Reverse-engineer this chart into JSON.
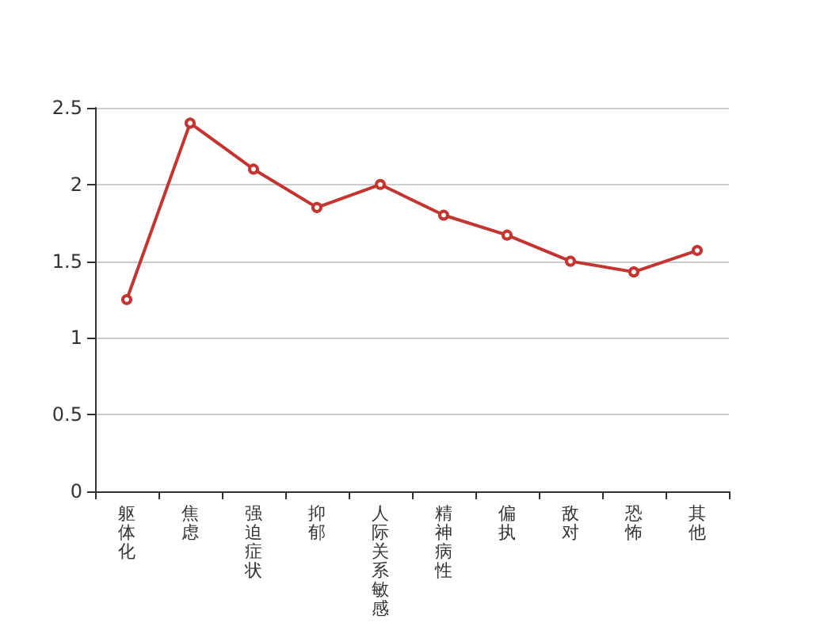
{
  "chart_data": {
    "type": "line",
    "categories": [
      "躯体化",
      "焦虑",
      "强迫症状",
      "抑郁",
      "人际关系敏感",
      "精神病性",
      "偏执",
      "敌对",
      "恐怖",
      "其他"
    ],
    "series": [
      {
        "color": "#c23531",
        "values": [
          1.25,
          2.4,
          2.1,
          1.85,
          2.0,
          1.8,
          1.67,
          1.5,
          1.43,
          1.57
        ]
      }
    ],
    "ylim": [
      0,
      2.5
    ],
    "yticks": [
      0,
      0.5,
      1,
      1.5,
      2,
      2.5
    ],
    "grid": "y",
    "marker": "circle",
    "line_style": "solid"
  }
}
